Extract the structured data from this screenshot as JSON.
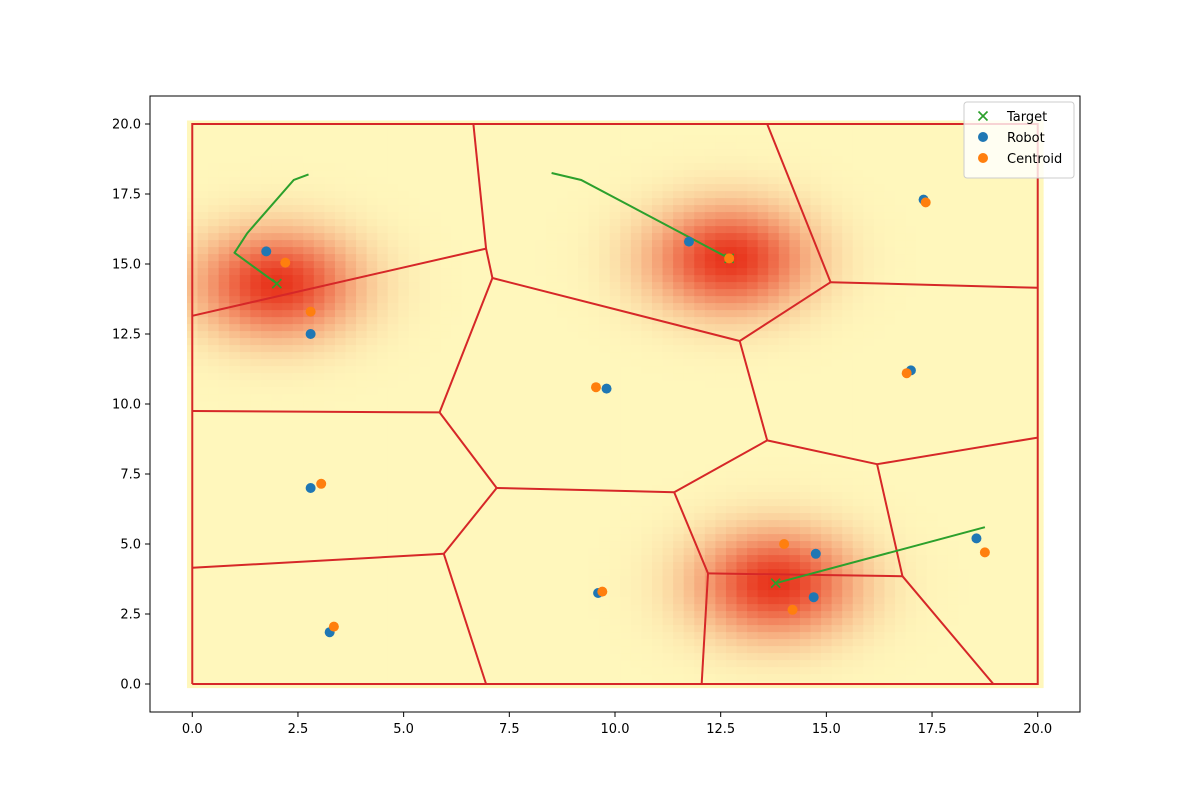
{
  "chart_data": {
    "type": "scatter",
    "title": "",
    "xlabel": "",
    "ylabel": "",
    "xlim": [
      -1,
      21
    ],
    "ylim": [
      -1,
      21
    ],
    "x_ticks": [
      0,
      2.5,
      5,
      7.5,
      10,
      12.5,
      15,
      17.5,
      20
    ],
    "x_tick_labels": [
      "0.0",
      "2.5",
      "5.0",
      "7.5",
      "10.0",
      "12.5",
      "15.0",
      "17.5",
      "20.0"
    ],
    "y_ticks": [
      0,
      2.5,
      5,
      7.5,
      10,
      12.5,
      15,
      17.5,
      20
    ],
    "y_tick_labels": [
      "0.0",
      "2.5",
      "5.0",
      "7.5",
      "10.0",
      "12.5",
      "15.0",
      "17.5",
      "20.0"
    ],
    "grid": false,
    "legend": {
      "location": "upper right",
      "entries": [
        {
          "label": "Target",
          "marker": "x",
          "color": "#2ca02c"
        },
        {
          "label": "Robot",
          "marker": "o",
          "color": "#1f77b4"
        },
        {
          "label": "Centroid",
          "marker": "o",
          "color": "#ff7f0e"
        }
      ]
    },
    "colors": {
      "target": "#2ca02c",
      "robot": "#1f77b4",
      "centroid": "#ff7f0e",
      "voronoi": "#d62728",
      "density_low": "#fff7bc",
      "density_high": "#e8341c"
    },
    "density_peaks": [
      {
        "x": 2.0,
        "y": 14.3,
        "intensity": 1.0
      },
      {
        "x": 12.7,
        "y": 15.2,
        "intensity": 1.0
      },
      {
        "x": 13.8,
        "y": 3.6,
        "intensity": 1.0
      }
    ],
    "targets": [
      {
        "x": 2.0,
        "y": 14.3
      },
      {
        "x": 12.7,
        "y": 15.2
      },
      {
        "x": 13.8,
        "y": 3.6
      }
    ],
    "target_trails": [
      [
        [
          2.75,
          18.2
        ],
        [
          2.4,
          18.0
        ],
        [
          1.3,
          16.1
        ],
        [
          1.0,
          15.4
        ],
        [
          2.0,
          14.3
        ]
      ],
      [
        [
          8.5,
          18.25
        ],
        [
          9.2,
          18.0
        ],
        [
          12.7,
          15.2
        ]
      ],
      [
        [
          18.75,
          5.6
        ],
        [
          13.8,
          3.6
        ]
      ]
    ],
    "robots": [
      {
        "x": 1.75,
        "y": 15.45
      },
      {
        "x": 2.8,
        "y": 12.5
      },
      {
        "x": 11.75,
        "y": 15.8
      },
      {
        "x": 17.3,
        "y": 17.3
      },
      {
        "x": 9.8,
        "y": 10.55
      },
      {
        "x": 17.0,
        "y": 11.2
      },
      {
        "x": 2.8,
        "y": 7.0
      },
      {
        "x": 9.6,
        "y": 3.25
      },
      {
        "x": 3.25,
        "y": 1.85
      },
      {
        "x": 14.75,
        "y": 4.65
      },
      {
        "x": 14.7,
        "y": 3.1
      },
      {
        "x": 18.55,
        "y": 5.2
      }
    ],
    "centroids": [
      {
        "x": 2.2,
        "y": 15.05
      },
      {
        "x": 2.8,
        "y": 13.3
      },
      {
        "x": 12.7,
        "y": 15.2
      },
      {
        "x": 17.35,
        "y": 17.2
      },
      {
        "x": 9.55,
        "y": 10.6
      },
      {
        "x": 16.9,
        "y": 11.1
      },
      {
        "x": 3.05,
        "y": 7.15
      },
      {
        "x": 9.7,
        "y": 3.3
      },
      {
        "x": 3.35,
        "y": 2.05
      },
      {
        "x": 14.0,
        "y": 5.0
      },
      {
        "x": 14.2,
        "y": 2.65
      },
      {
        "x": 18.75,
        "y": 4.7
      }
    ],
    "voronoi_edges": [
      [
        [
          0,
          0
        ],
        [
          20,
          0
        ],
        [
          20,
          20
        ],
        [
          0,
          20
        ],
        [
          0,
          0
        ]
      ],
      [
        [
          6.65,
          20
        ],
        [
          6.95,
          15.55
        ]
      ],
      [
        [
          0,
          13.15
        ],
        [
          6.95,
          15.55
        ]
      ],
      [
        [
          6.95,
          15.55
        ],
        [
          7.1,
          14.5
        ]
      ],
      [
        [
          7.1,
          14.5
        ],
        [
          12.95,
          12.25
        ]
      ],
      [
        [
          7.1,
          14.5
        ],
        [
          5.85,
          9.7
        ]
      ],
      [
        [
          0,
          9.75
        ],
        [
          5.85,
          9.7
        ]
      ],
      [
        [
          5.85,
          9.7
        ],
        [
          7.2,
          7.0
        ]
      ],
      [
        [
          0,
          4.15
        ],
        [
          5.95,
          4.65
        ]
      ],
      [
        [
          5.95,
          4.65
        ],
        [
          7.2,
          7.0
        ]
      ],
      [
        [
          5.95,
          4.65
        ],
        [
          6.95,
          0
        ]
      ],
      [
        [
          7.2,
          7.0
        ],
        [
          11.4,
          6.85
        ]
      ],
      [
        [
          11.4,
          6.85
        ],
        [
          13.6,
          8.7
        ]
      ],
      [
        [
          11.4,
          6.85
        ],
        [
          12.2,
          3.95
        ]
      ],
      [
        [
          12.2,
          3.95
        ],
        [
          12.05,
          0
        ]
      ],
      [
        [
          12.2,
          3.95
        ],
        [
          16.8,
          3.85
        ]
      ],
      [
        [
          16.8,
          3.85
        ],
        [
          16.2,
          7.85
        ]
      ],
      [
        [
          16.8,
          3.85
        ],
        [
          18.95,
          0
        ]
      ],
      [
        [
          13.6,
          8.7
        ],
        [
          16.2,
          7.85
        ]
      ],
      [
        [
          16.2,
          7.85
        ],
        [
          20,
          8.8
        ]
      ],
      [
        [
          13.6,
          8.7
        ],
        [
          12.95,
          12.25
        ]
      ],
      [
        [
          12.95,
          12.25
        ],
        [
          15.1,
          14.35
        ]
      ],
      [
        [
          15.1,
          14.35
        ],
        [
          20,
          14.15
        ]
      ],
      [
        [
          15.1,
          14.35
        ],
        [
          13.6,
          20
        ]
      ]
    ]
  }
}
